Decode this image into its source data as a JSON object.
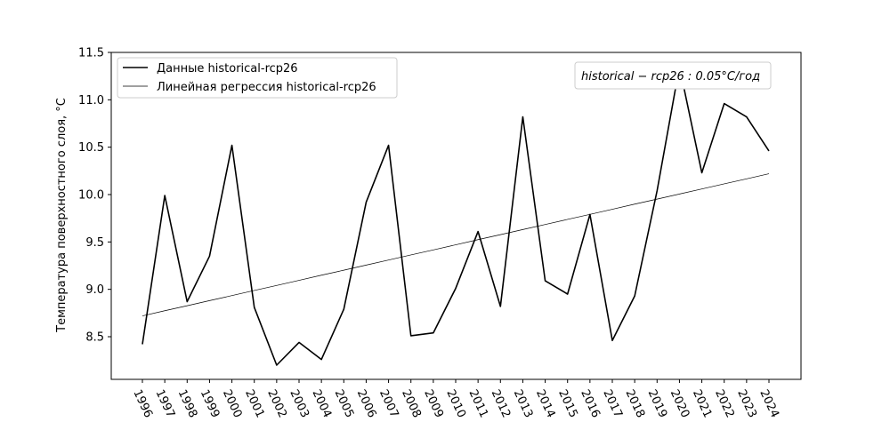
{
  "chart_data": {
    "type": "line",
    "ylabel": "Температура поверхностного слоя, °C",
    "xlabel": "",
    "ylim": [
      8.05,
      11.5
    ],
    "yticks": [
      8.5,
      9.0,
      9.5,
      10.0,
      10.5,
      11.0,
      11.5
    ],
    "ytick_labels": [
      "8.5",
      "9.0",
      "9.5",
      "10.0",
      "10.5",
      "11.0",
      "11.5"
    ],
    "x": [
      "1996",
      "1997",
      "1998",
      "1999",
      "2000",
      "2001",
      "2002",
      "2003",
      "2004",
      "2005",
      "2006",
      "2007",
      "2008",
      "2009",
      "2010",
      "2011",
      "2012",
      "2013",
      "2014",
      "2015",
      "2016",
      "2017",
      "2018",
      "2019",
      "2020",
      "2021",
      "2022",
      "2023",
      "2024"
    ],
    "series": [
      {
        "name": "Данные historical-rcp26",
        "color": "#000000",
        "values": [
          8.42,
          9.99,
          8.87,
          9.35,
          10.52,
          8.81,
          8.2,
          8.44,
          8.26,
          8.79,
          9.92,
          10.52,
          8.51,
          8.54,
          9.01,
          9.61,
          8.82,
          10.82,
          9.09,
          8.95,
          9.79,
          8.46,
          8.93,
          10.04,
          11.35,
          10.23,
          10.96,
          10.82,
          10.46
        ]
      },
      {
        "name": "Линейная регрессия historical-rcp26",
        "color": "#000000",
        "values": [
          8.72,
          8.774,
          8.827,
          8.881,
          8.934,
          8.988,
          9.041,
          9.095,
          9.149,
          9.202,
          9.256,
          9.309,
          9.363,
          9.416,
          9.47,
          9.524,
          9.577,
          9.631,
          9.684,
          9.738,
          9.791,
          9.845,
          9.899,
          9.952,
          10.006,
          10.059,
          10.113,
          10.166,
          10.22
        ]
      }
    ],
    "legend_position": "top-left",
    "annotation": "historical − rcp26 : 0.05°C/год",
    "grid": false
  }
}
